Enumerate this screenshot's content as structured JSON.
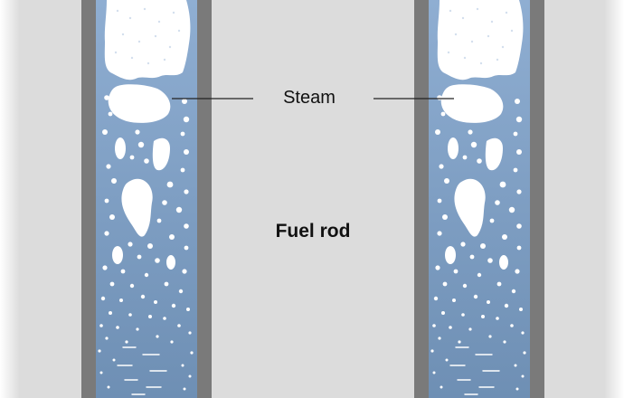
{
  "labels": {
    "steam": "Steam",
    "fuel_rod": "Fuel rod"
  },
  "colors": {
    "fuel_rod": "#dcdcdc",
    "channel_wall": "#7a7a7a",
    "coolant_top": "#8faed2",
    "coolant_bottom": "#6e8fb4",
    "steam": "#ffffff",
    "leader_line": "#222222"
  }
}
